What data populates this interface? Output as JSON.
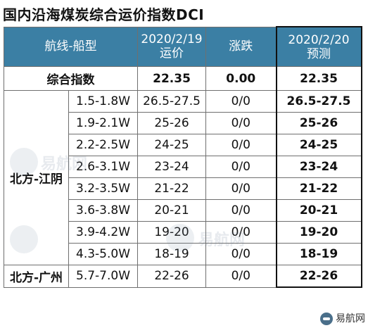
{
  "title": "国内沿海煤炭综合运价指数DCI",
  "header": {
    "route_ship": "航线-船型",
    "date1": "2020/2/19",
    "price": "运价",
    "change": "涨跌",
    "date2": "2020/2/20",
    "forecast": "预测"
  },
  "summary": {
    "label": "综合指数",
    "price": "22.35",
    "change": "0.00",
    "forecast": "22.35"
  },
  "regions": {
    "north_jiangyin": "北方-江阴",
    "north_guangzhou": "北方-广州"
  },
  "rows": [
    {
      "ship": "1.5-1.8W",
      "price": "26.5-27.5",
      "change": "0/0",
      "forecast": "26.5-27.5"
    },
    {
      "ship": "1.9-2.1W",
      "price": "25-26",
      "change": "0/0",
      "forecast": "25-26"
    },
    {
      "ship": "2.2-2.5W",
      "price": "24-25",
      "change": "0/0",
      "forecast": "24-25"
    },
    {
      "ship": "2.6-3.1W",
      "price": "23-24",
      "change": "0/0",
      "forecast": "23-24"
    },
    {
      "ship": "3.2-3.5W",
      "price": "21-22",
      "change": "0/0",
      "forecast": "21-22"
    },
    {
      "ship": "3.6-3.8W",
      "price": "20-21",
      "change": "0/0",
      "forecast": "20-21"
    },
    {
      "ship": "3.9-4.2W",
      "price": "19-20",
      "change": "0/0",
      "forecast": "19-20"
    },
    {
      "ship": "4.3-5.0W",
      "price": "18-19",
      "change": "0/0",
      "forecast": "18-19"
    },
    {
      "ship": "5.7-7.0W",
      "price": "22-26",
      "change": "0/0",
      "forecast": "22-26"
    }
  ],
  "watermark": "易航网",
  "footer": {
    "brand": "易航网",
    "logo_icon": "brand-logo-icon"
  },
  "colors": {
    "header_bg": "#3b7fa4",
    "header_text": "#ffffff"
  }
}
